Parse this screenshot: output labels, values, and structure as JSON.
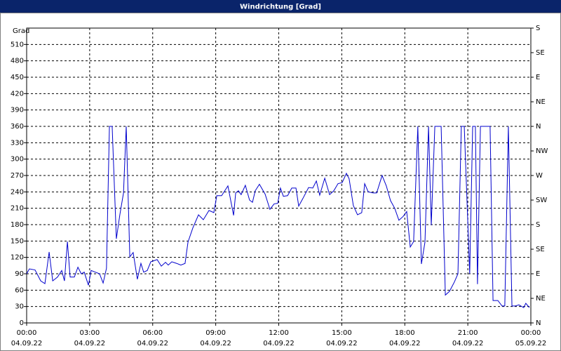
{
  "chart_data": {
    "type": "line",
    "title": "Windrichtung [Grad]",
    "ylabel": "Grad",
    "xlim": [
      0,
      24
    ],
    "xticks": [
      {
        "value": 0,
        "label": "00:00"
      },
      {
        "value": 3,
        "label": "03:00"
      },
      {
        "value": 6,
        "label": "06:00"
      },
      {
        "value": 9,
        "label": "09:00"
      },
      {
        "value": 12,
        "label": "12:00"
      },
      {
        "value": 15,
        "label": "15:00"
      },
      {
        "value": 18,
        "label": "18:00"
      },
      {
        "value": 21,
        "label": "21:00"
      },
      {
        "value": 24,
        "label": "00:00"
      }
    ],
    "xtick_dates": [
      "04.09.22",
      "04.09.22",
      "04.09.22",
      "04.09.22",
      "04.09.22",
      "04.09.22",
      "04.09.22",
      "04.09.22",
      "05.09.22"
    ],
    "ylim": [
      0,
      540
    ],
    "yticks": [
      0,
      30,
      60,
      90,
      120,
      150,
      180,
      210,
      240,
      270,
      300,
      330,
      360,
      390,
      420,
      450,
      480,
      510
    ],
    "y2lim": [
      0,
      540
    ],
    "y2ticks": [
      {
        "value": 0,
        "label": "N"
      },
      {
        "value": 45,
        "label": "NE"
      },
      {
        "value": 90,
        "label": "E"
      },
      {
        "value": 135,
        "label": "SE"
      },
      {
        "value": 180,
        "label": "S"
      },
      {
        "value": 225,
        "label": "SW"
      },
      {
        "value": 270,
        "label": "W"
      },
      {
        "value": 315,
        "label": "NW"
      },
      {
        "value": 360,
        "label": "N"
      },
      {
        "value": 405,
        "label": "NE"
      },
      {
        "value": 450,
        "label": "E"
      },
      {
        "value": 495,
        "label": "SE"
      },
      {
        "value": 540,
        "label": "S"
      }
    ],
    "grid": true,
    "series": [
      {
        "color": "#0000cc",
        "x": [
          0,
          0.13,
          0.4,
          0.67,
          0.87,
          1.07,
          1.24,
          1.47,
          1.67,
          1.8,
          1.94,
          2.07,
          2.27,
          2.44,
          2.6,
          2.74,
          2.94,
          3.07,
          3.27,
          3.47,
          3.64,
          3.8,
          3.94,
          4.07,
          4.27,
          4.44,
          4.61,
          4.74,
          4.91,
          5.07,
          5.27,
          5.44,
          5.57,
          5.74,
          5.91,
          6.21,
          6.41,
          6.61,
          6.74,
          6.91,
          7.14,
          7.34,
          7.54,
          7.68,
          7.91,
          8.18,
          8.41,
          8.68,
          8.91,
          9.05,
          9.28,
          9.58,
          9.85,
          9.95,
          10.08,
          10.21,
          10.41,
          10.61,
          10.75,
          10.88,
          11.08,
          11.35,
          11.58,
          11.78,
          11.95,
          12.08,
          12.22,
          12.42,
          12.62,
          12.82,
          12.95,
          13.15,
          13.42,
          13.62,
          13.79,
          13.95,
          14.19,
          14.42,
          14.62,
          14.82,
          15.02,
          15.22,
          15.35,
          15.55,
          15.75,
          15.95,
          16.09,
          16.26,
          16.49,
          16.66,
          16.92,
          17.12,
          17.32,
          17.52,
          17.72,
          17.92,
          18.09,
          18.26,
          18.42,
          18.62,
          18.79,
          18.96,
          19.13,
          19.26,
          19.43,
          19.73,
          19.93,
          20.13,
          20.36,
          20.53,
          20.69,
          20.83,
          21.09,
          21.23,
          21.36,
          21.46,
          21.6,
          21.76,
          22.06,
          22.2,
          22.43,
          22.63,
          22.76,
          22.93,
          23.1,
          23.26,
          23.43,
          23.66,
          23.76,
          23.93
        ],
        "values": [
          90,
          99,
          97,
          77,
          72,
          130,
          77,
          84,
          96,
          77,
          149,
          84,
          84,
          102,
          90,
          93,
          69,
          96,
          93,
          90,
          73,
          100,
          360,
          360,
          154,
          199,
          238,
          360,
          121,
          129,
          80,
          109,
          93,
          96,
          112,
          116,
          104,
          111,
          106,
          112,
          109,
          106,
          109,
          148,
          174,
          198,
          189,
          206,
          202,
          233,
          233,
          251,
          197,
          238,
          242,
          235,
          252,
          225,
          221,
          242,
          254,
          236,
          208,
          218,
          219,
          247,
          232,
          233,
          247,
          247,
          214,
          228,
          248,
          247,
          260,
          234,
          265,
          235,
          242,
          255,
          257,
          274,
          264,
          215,
          198,
          202,
          255,
          240,
          238,
          238,
          270,
          251,
          224,
          210,
          188,
          195,
          204,
          139,
          149,
          360,
          108,
          148,
          360,
          179,
          360,
          360,
          51,
          58,
          75,
          90,
          360,
          360,
          90,
          360,
          360,
          71,
          360,
          360,
          360,
          41,
          41,
          31,
          31,
          360,
          31,
          31,
          33,
          28,
          36,
          28
        ]
      }
    ]
  }
}
